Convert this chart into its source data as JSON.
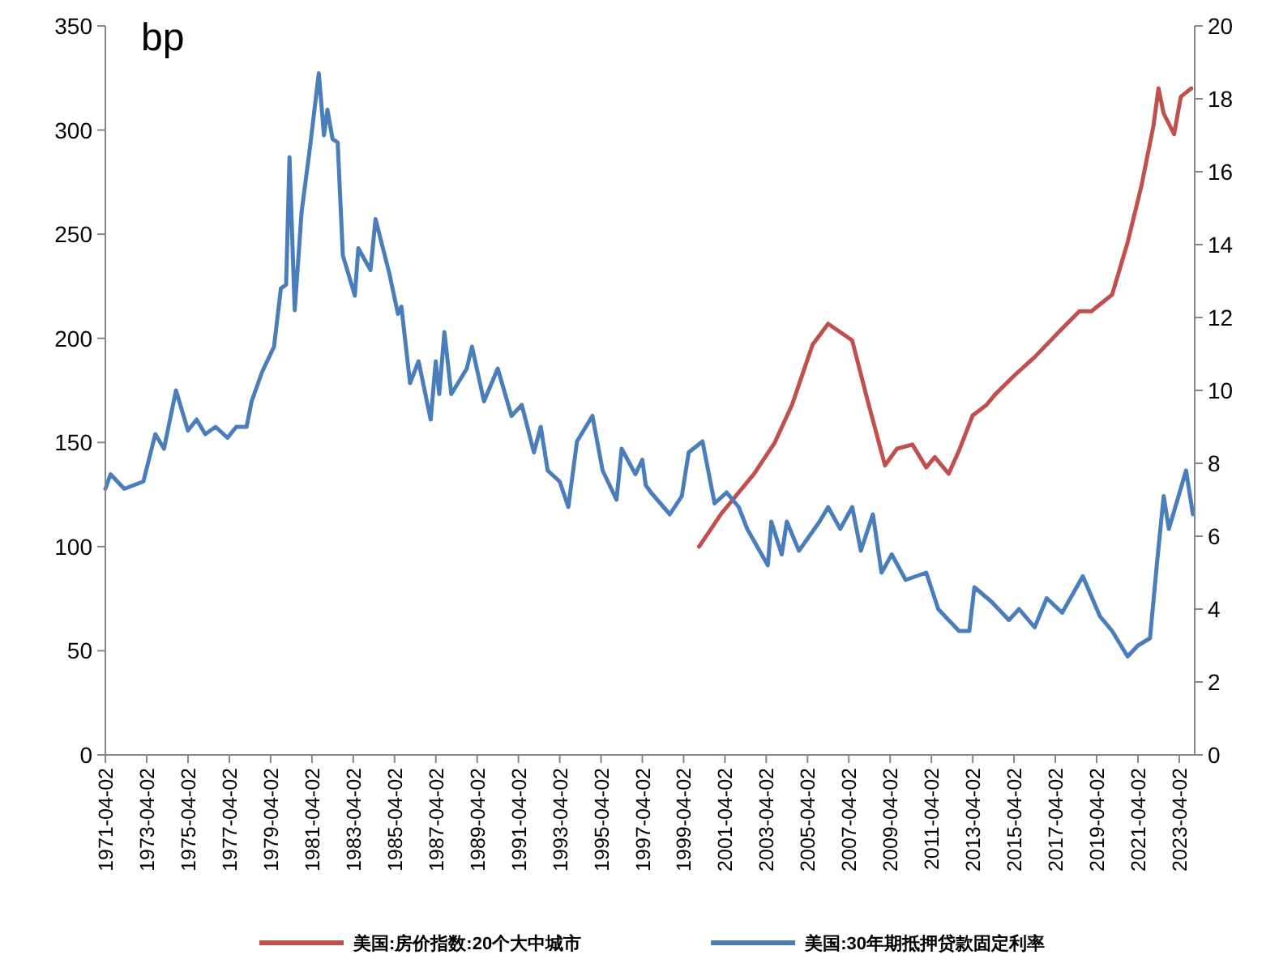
{
  "chart_data": {
    "type": "line",
    "ylabel": "bp",
    "legend": "bottom",
    "line_style": "solid",
    "xlim": [
      "1971-04",
      "2024-01"
    ],
    "xticks": [
      "1971-04-02",
      "1973-04-02",
      "1975-04-02",
      "1977-04-02",
      "1979-04-02",
      "1981-04-02",
      "1983-04-02",
      "1985-04-02",
      "1987-04-02",
      "1989-04-02",
      "1991-04-02",
      "1993-04-02",
      "1995-04-02",
      "1997-04-02",
      "1999-04-02",
      "2001-04-02",
      "2003-04-02",
      "2005-04-02",
      "2007-04-02",
      "2009-04-02",
      "2011-04-02",
      "2013-04-02",
      "2015-04-02",
      "2017-04-02",
      "2019-04-02",
      "2021-04-02",
      "2023-04-02"
    ],
    "ylim": [
      0,
      350
    ],
    "yticks": [
      0,
      50,
      100,
      150,
      200,
      250,
      300,
      350
    ],
    "y2lim": [
      0,
      20
    ],
    "y2ticks": [
      0,
      2,
      4,
      6,
      8,
      10,
      12,
      14,
      16,
      18,
      20
    ],
    "series": [
      {
        "name": "美国:房价指数:20个大中城市",
        "color": "#c0504d",
        "x": [
          "2000-01",
          "2001-02",
          "2002-09",
          "2003-09",
          "2004-07",
          "2005-07",
          "2006-04",
          "2007-06",
          "2008-03",
          "2009-01",
          "2009-08",
          "2010-05",
          "2011-01",
          "2011-06",
          "2012-02",
          "2012-08",
          "2013-04",
          "2013-12",
          "2014-05",
          "2015-04",
          "2016-04",
          "2017-06",
          "2018-06",
          "2019-01",
          "2020-01",
          "2020-10",
          "2021-06",
          "2022-01",
          "2022-04",
          "2022-07",
          "2023-01",
          "2023-05",
          "2023-11"
        ],
        "values": [
          100,
          116,
          135,
          150,
          168,
          197,
          207,
          199,
          170,
          139,
          147,
          149,
          138,
          143,
          135,
          146,
          163,
          168,
          173,
          182,
          191,
          203,
          213,
          213,
          221,
          246,
          273,
          302,
          320,
          308,
          298,
          316,
          320
        ]
      },
      {
        "name": "美国:30年期抵押贷款固定利率",
        "color": "#4a7ebb",
        "axis": "y2",
        "x": [
          "1971-04",
          "1971-07",
          "1972-03",
          "1973-02",
          "1973-09",
          "1974-02",
          "1974-09",
          "1975-04",
          "1975-09",
          "1976-02",
          "1976-08",
          "1977-03",
          "1977-08",
          "1978-02",
          "1978-05",
          "1978-11",
          "1979-06",
          "1979-10",
          "1980-01",
          "1980-03",
          "1980-06",
          "1980-10",
          "1981-03",
          "1981-08",
          "1981-11",
          "1982-01",
          "1982-04",
          "1982-07",
          "1982-10",
          "1983-05",
          "1983-07",
          "1984-02",
          "1984-05",
          "1985-01",
          "1985-06",
          "1985-08",
          "1986-01",
          "1986-06",
          "1987-01",
          "1987-04",
          "1987-06",
          "1987-09",
          "1988-01",
          "1988-10",
          "1989-01",
          "1989-08",
          "1990-04",
          "1990-12",
          "1991-06",
          "1992-01",
          "1992-05",
          "1992-09",
          "1993-04",
          "1993-09",
          "1994-02",
          "1994-11",
          "1995-05",
          "1996-01",
          "1996-04",
          "1996-12",
          "1997-04",
          "1997-06",
          "1997-09",
          "1998-08",
          "1999-03",
          "1999-07",
          "2000-03",
          "2000-10",
          "2001-05",
          "2001-12",
          "2002-05",
          "2003-05",
          "2003-07",
          "2004-01",
          "2004-04",
          "2004-11",
          "2005-11",
          "2006-04",
          "2006-11",
          "2007-06",
          "2007-11",
          "2008-06",
          "2008-11",
          "2009-05",
          "2010-01",
          "2011-01",
          "2011-08",
          "2012-08",
          "2013-02",
          "2013-05",
          "2014-03",
          "2015-01",
          "2015-07",
          "2016-04",
          "2016-11",
          "2017-08",
          "2018-08",
          "2019-06",
          "2020-01",
          "2020-10",
          "2021-04",
          "2021-11",
          "2022-03",
          "2022-07",
          "2022-10",
          "2023-08",
          "2023-12"
        ],
        "values": [
          7.3,
          7.7,
          7.3,
          7.5,
          8.8,
          8.4,
          10.0,
          8.9,
          9.2,
          8.8,
          9.0,
          8.7,
          9.0,
          9.0,
          9.7,
          10.5,
          11.2,
          12.8,
          12.9,
          16.4,
          12.2,
          14.9,
          16.7,
          18.7,
          17.0,
          17.7,
          16.9,
          16.8,
          13.7,
          12.6,
          13.9,
          13.3,
          14.7,
          13.2,
          12.1,
          12.3,
          10.2,
          10.8,
          9.2,
          10.8,
          9.9,
          11.6,
          9.9,
          10.6,
          11.2,
          9.7,
          10.6,
          9.3,
          9.6,
          8.3,
          9.0,
          7.8,
          7.5,
          6.8,
          8.6,
          9.3,
          7.8,
          7.0,
          8.4,
          7.7,
          8.1,
          7.4,
          7.2,
          6.6,
          7.1,
          8.3,
          8.6,
          6.9,
          7.2,
          6.8,
          6.2,
          5.2,
          6.4,
          5.5,
          6.4,
          5.6,
          6.4,
          6.8,
          6.2,
          6.8,
          5.6,
          6.6,
          5.0,
          5.5,
          4.8,
          5.0,
          4.0,
          3.4,
          3.4,
          4.6,
          4.2,
          3.7,
          4.0,
          3.5,
          4.3,
          3.9,
          4.9,
          3.8,
          3.4,
          2.7,
          3.0,
          3.2,
          5.2,
          7.1,
          6.2,
          7.8,
          6.6
        ]
      }
    ]
  }
}
